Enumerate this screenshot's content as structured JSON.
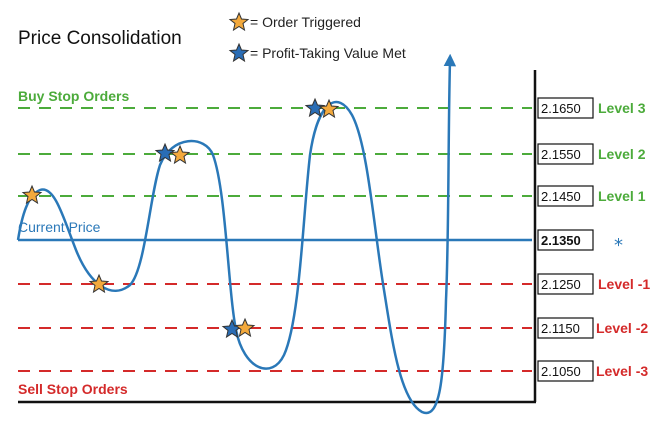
{
  "title": "Price Consolidation",
  "legend": {
    "order_triggered": "= Order Triggered",
    "profit_taking": "= Profit-Taking Value Met"
  },
  "zones": {
    "buy": "Buy Stop Orders",
    "sell": "Sell Stop Orders"
  },
  "current_price_label": "Current Price",
  "current_price": {
    "value": "2.1350",
    "marker": "*"
  },
  "levels": [
    {
      "price": "2.1650",
      "name": "Level 3",
      "kind": "buy"
    },
    {
      "price": "2.1550",
      "name": "Level 2",
      "kind": "buy"
    },
    {
      "price": "2.1450",
      "name": "Level 1",
      "kind": "buy"
    },
    {
      "price": "2.1250",
      "name": "Level -1",
      "kind": "sell"
    },
    {
      "price": "2.1150",
      "name": "Level -2",
      "kind": "sell"
    },
    {
      "price": "2.1050",
      "name": "Level -3",
      "kind": "sell"
    }
  ],
  "colors": {
    "buy": "#4cab3b",
    "sell": "#d42a2a",
    "price_line": "#2a78b8",
    "order_star": "#f3a93c",
    "profit_star": "#2a6db5"
  }
}
